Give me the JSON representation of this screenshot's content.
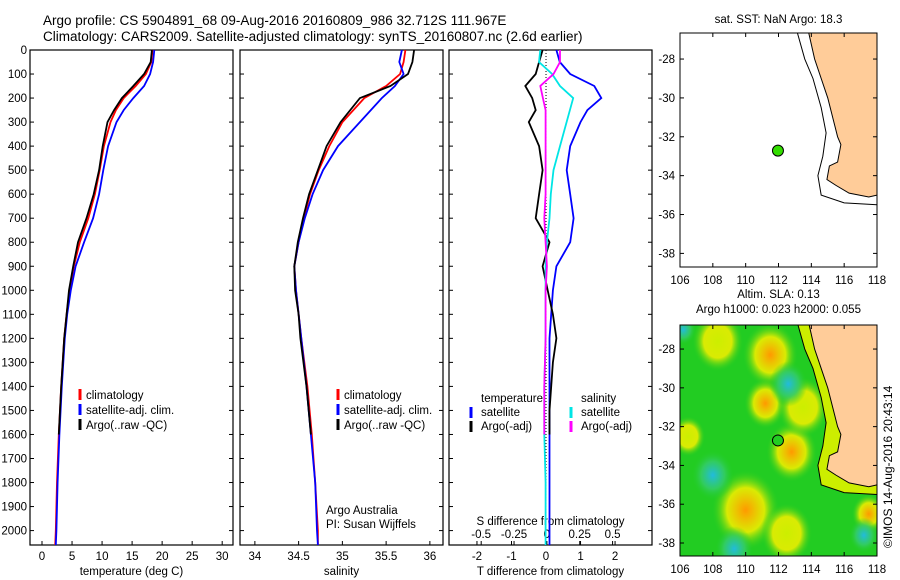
{
  "header": {
    "line1": "Argo profile: CS 5904891_68 09-Aug-2016 20160809_986 32.712S 111.967E",
    "line2": "Climatology: CARS2009. Satellite-adjusted climatology: synTS_20160807.nc (2.6d earlier)"
  },
  "colors": {
    "climatology": "#ff0000",
    "satellite": "#0000ff",
    "argo": "#000000",
    "sal_satellite": "#00e5e5",
    "sal_argo": "#ff00ff",
    "land": "#ffcc99",
    "float_marker": "#33dd00"
  },
  "chart_data": [
    {
      "type": "line",
      "id": "temperature",
      "xlabel": "temperature (deg C)",
      "ylabel": "",
      "xlim": [
        -2,
        31.8
      ],
      "ylim": [
        0,
        2060
      ],
      "xticks": [
        0,
        5,
        10,
        15,
        20,
        25,
        30
      ],
      "xticklabels": [
        "0",
        "5",
        "10",
        "15",
        "20",
        "25",
        "30"
      ],
      "yticks": [
        0,
        100,
        200,
        300,
        400,
        500,
        600,
        700,
        800,
        900,
        1000,
        1100,
        1200,
        1300,
        1400,
        1500,
        1600,
        1700,
        1800,
        1900,
        2000
      ],
      "legend": [
        "climatology",
        "satellite-adj. clim.",
        "Argo(..raw -QC)"
      ],
      "series": [
        {
          "name": "climatology",
          "color": "#ff0000",
          "depth": [
            0,
            50,
            100,
            150,
            200,
            250,
            300,
            400,
            500,
            600,
            700,
            800,
            900,
            1000,
            1100,
            1200,
            1400,
            1600,
            1800,
            2000,
            2060
          ],
          "values": [
            18.4,
            18.2,
            17.3,
            15.6,
            13.6,
            12.3,
            11.4,
            10.3,
            9.6,
            8.8,
            7.7,
            6.3,
            5.3,
            4.6,
            4.1,
            3.7,
            3.2,
            2.8,
            2.5,
            2.3,
            2.2
          ]
        },
        {
          "name": "satellite-adj. clim.",
          "color": "#0000ff",
          "depth": [
            0,
            50,
            100,
            150,
            200,
            250,
            300,
            400,
            500,
            600,
            700,
            800,
            900,
            1000,
            1100,
            1200,
            1400,
            1600,
            1800,
            2000,
            2060
          ],
          "values": [
            18.7,
            18.5,
            18.0,
            17.0,
            15.2,
            13.6,
            12.4,
            11.0,
            10.2,
            9.5,
            8.5,
            7.0,
            5.6,
            4.8,
            4.2,
            3.8,
            3.3,
            2.9,
            2.6,
            2.4,
            2.3
          ]
        },
        {
          "name": "Argo(..raw -QC)",
          "color": "#000000",
          "depth": [
            0,
            50,
            100,
            150,
            200,
            250,
            300,
            400,
            500,
            600,
            700,
            800,
            900,
            1000,
            1100,
            1200,
            1400,
            1600
          ],
          "values": [
            18.3,
            18.1,
            17.0,
            15.2,
            13.3,
            12.0,
            10.9,
            10.1,
            9.5,
            8.6,
            7.4,
            6.0,
            5.2,
            4.5,
            4.1,
            3.7,
            3.2,
            2.8
          ]
        }
      ]
    },
    {
      "type": "line",
      "id": "salinity",
      "xlabel": "salinity",
      "ylabel": "",
      "xlim": [
        33.83,
        36.15
      ],
      "ylim": [
        0,
        2060
      ],
      "xticks": [
        34,
        34.5,
        35,
        35.5,
        36
      ],
      "xticklabels": [
        "34",
        "34.5",
        "35",
        "35.5",
        "36"
      ],
      "yticks": [
        0,
        100,
        200,
        300,
        400,
        500,
        600,
        700,
        800,
        900,
        1000,
        1100,
        1200,
        1300,
        1400,
        1500,
        1600,
        1700,
        1800,
        1900,
        2000
      ],
      "legend": [
        "climatology",
        "satellite-adj. clim.",
        "Argo(..raw -QC)"
      ],
      "annotation": [
        "Argo Australia",
        "PI: Susan Wijffels"
      ],
      "series": [
        {
          "name": "climatology",
          "color": "#ff0000",
          "depth": [
            0,
            50,
            100,
            150,
            200,
            300,
            400,
            500,
            600,
            700,
            800,
            900,
            1000,
            1200,
            1400,
            1600,
            1800,
            2000,
            2060
          ],
          "values": [
            35.72,
            35.7,
            35.66,
            35.5,
            35.25,
            35.0,
            34.85,
            34.73,
            34.63,
            34.56,
            34.5,
            34.45,
            34.47,
            34.53,
            34.6,
            34.65,
            34.69,
            34.72,
            34.72
          ]
        },
        {
          "name": "satellite-adj. clim.",
          "color": "#0000ff",
          "depth": [
            0,
            50,
            100,
            150,
            200,
            300,
            400,
            500,
            600,
            700,
            800,
            900,
            1000,
            1200,
            1400,
            1600,
            1800,
            2000,
            2060
          ],
          "values": [
            35.68,
            35.65,
            35.7,
            35.6,
            35.45,
            35.2,
            34.95,
            34.78,
            34.66,
            34.57,
            34.5,
            34.45,
            34.47,
            34.53,
            34.59,
            34.64,
            34.69,
            34.71,
            34.72
          ]
        },
        {
          "name": "Argo(..raw -QC)",
          "color": "#000000",
          "depth": [
            0,
            50,
            100,
            150,
            200,
            300,
            400,
            500,
            600,
            700,
            800,
            900,
            1000,
            1100,
            1200,
            1400,
            1600
          ],
          "values": [
            35.82,
            35.8,
            35.75,
            35.55,
            35.2,
            34.98,
            34.82,
            34.72,
            34.62,
            34.55,
            34.49,
            34.45,
            34.46,
            34.5,
            34.52,
            34.59,
            34.64
          ]
        }
      ]
    },
    {
      "type": "line",
      "id": "difference",
      "xlabel": "T difference from climatology",
      "x2label": "S difference from climatology",
      "xlim": [
        -2.81,
        3.07
      ],
      "x2lim": [
        -0.745,
        0.8
      ],
      "ylim": [
        0,
        2060
      ],
      "xticks": [
        -2,
        -1,
        0,
        1,
        2
      ],
      "xticklabels": [
        "-2",
        "-1",
        "0",
        "1",
        "2"
      ],
      "x2ticks": [
        -0.5,
        -0.25,
        0,
        0.25,
        0.5
      ],
      "x2ticklabels": [
        "-0.5",
        "-0.25",
        "0",
        "0.25",
        "0.5"
      ],
      "yticks": [
        0,
        100,
        200,
        300,
        400,
        500,
        600,
        700,
        800,
        900,
        1000,
        1100,
        1200,
        1300,
        1400,
        1500,
        1600,
        1700,
        1800,
        1900,
        2000
      ],
      "legend_headers": [
        "temperature",
        "salinity"
      ],
      "legend": [
        "satellite",
        "Argo(-adj)",
        "satellite",
        "Argo(-adj)"
      ],
      "series": [
        {
          "name": "T satellite",
          "axis": "T",
          "color": "#0000ff",
          "depth": [
            0,
            50,
            100,
            150,
            200,
            250,
            300,
            400,
            500,
            600,
            700,
            800,
            900,
            1000,
            1200,
            1400,
            1600,
            1800,
            2000,
            2060
          ],
          "values": [
            0.3,
            0.4,
            0.7,
            1.4,
            1.6,
            1.2,
            1.0,
            0.7,
            0.6,
            0.7,
            0.8,
            0.7,
            0.3,
            0.2,
            0.1,
            0.1,
            0.1,
            0.1,
            0.1,
            0.1
          ]
        },
        {
          "name": "T Argo(-adj)",
          "axis": "T",
          "color": "#000000",
          "depth": [
            0,
            50,
            100,
            150,
            200,
            250,
            300,
            400,
            500,
            600,
            700,
            800,
            900,
            1000,
            1100,
            1200,
            1300,
            1400,
            1500,
            1600
          ],
          "values": [
            -0.1,
            -0.2,
            -0.3,
            -0.6,
            -0.4,
            -0.3,
            -0.5,
            -0.2,
            -0.1,
            -0.2,
            -0.3,
            0.1,
            -0.1,
            0.05,
            0.2,
            0.3,
            0.2,
            0.15,
            0.1,
            0.1
          ]
        },
        {
          "name": "S satellite",
          "axis": "S",
          "color": "#00e5e5",
          "depth": [
            0,
            50,
            100,
            150,
            200,
            300,
            400,
            500,
            600,
            700,
            800,
            900,
            1000,
            1200,
            1400,
            1600,
            1800,
            2000,
            2060
          ],
          "values": [
            -0.05,
            -0.06,
            0.04,
            0.1,
            0.2,
            0.15,
            0.1,
            0.05,
            0.03,
            0.02,
            0.0,
            -0.01,
            -0.01,
            -0.01,
            -0.02,
            -0.02,
            -0.01,
            -0.01,
            -0.01
          ]
        },
        {
          "name": "S Argo(-adj)",
          "axis": "S",
          "color": "#ff00ff",
          "depth": [
            0,
            50,
            100,
            150,
            200,
            250,
            300,
            400,
            500,
            600,
            700,
            800,
            900,
            1000,
            1200,
            1400,
            1600
          ],
          "values": [
            0.1,
            0.1,
            0.05,
            -0.05,
            -0.03,
            -0.01,
            -0.01,
            -0.01,
            -0.01,
            -0.01,
            -0.02,
            -0.01,
            0.0,
            -0.01,
            -0.01,
            -0.02,
            -0.02
          ]
        }
      ]
    }
  ],
  "depth_ticklabels": [
    "0",
    "100",
    "200",
    "300",
    "400",
    "500",
    "600",
    "700",
    "800",
    "900",
    "1000",
    "1100",
    "1200",
    "1300",
    "1400",
    "1500",
    "1600",
    "1700",
    "1800",
    "1900",
    "2000"
  ],
  "maps": [
    {
      "id": "sst",
      "title": "sat. SST: NaN Argo: 18.3",
      "lonlim": [
        106,
        118
      ],
      "latlim": [
        -38.7,
        -26.66
      ],
      "xticklabels": [
        "106",
        "108",
        "110",
        "112",
        "114",
        "116",
        "118"
      ],
      "yticklabels": [
        "-28",
        "-30",
        "-32",
        "-34",
        "-36",
        "-38"
      ],
      "float": {
        "lon": 111.967,
        "lat": -32.712
      }
    },
    {
      "id": "sla",
      "title_line1": "Altim. SLA: 0.13",
      "title_line2": "Argo h1000: 0.023 h2000: 0.055",
      "lonlim": [
        106,
        118
      ],
      "latlim": [
        -38.67,
        -26.76
      ],
      "xticklabels": [
        "106",
        "108",
        "110",
        "112",
        "114",
        "116",
        "118"
      ],
      "yticklabels": [
        "-28",
        "-30",
        "-32",
        "-34",
        "-36",
        "-38"
      ],
      "float": {
        "lon": 111.967,
        "lat": -32.712
      }
    }
  ],
  "credit": "©IMOS 14-Aug-2016 20:43:14"
}
